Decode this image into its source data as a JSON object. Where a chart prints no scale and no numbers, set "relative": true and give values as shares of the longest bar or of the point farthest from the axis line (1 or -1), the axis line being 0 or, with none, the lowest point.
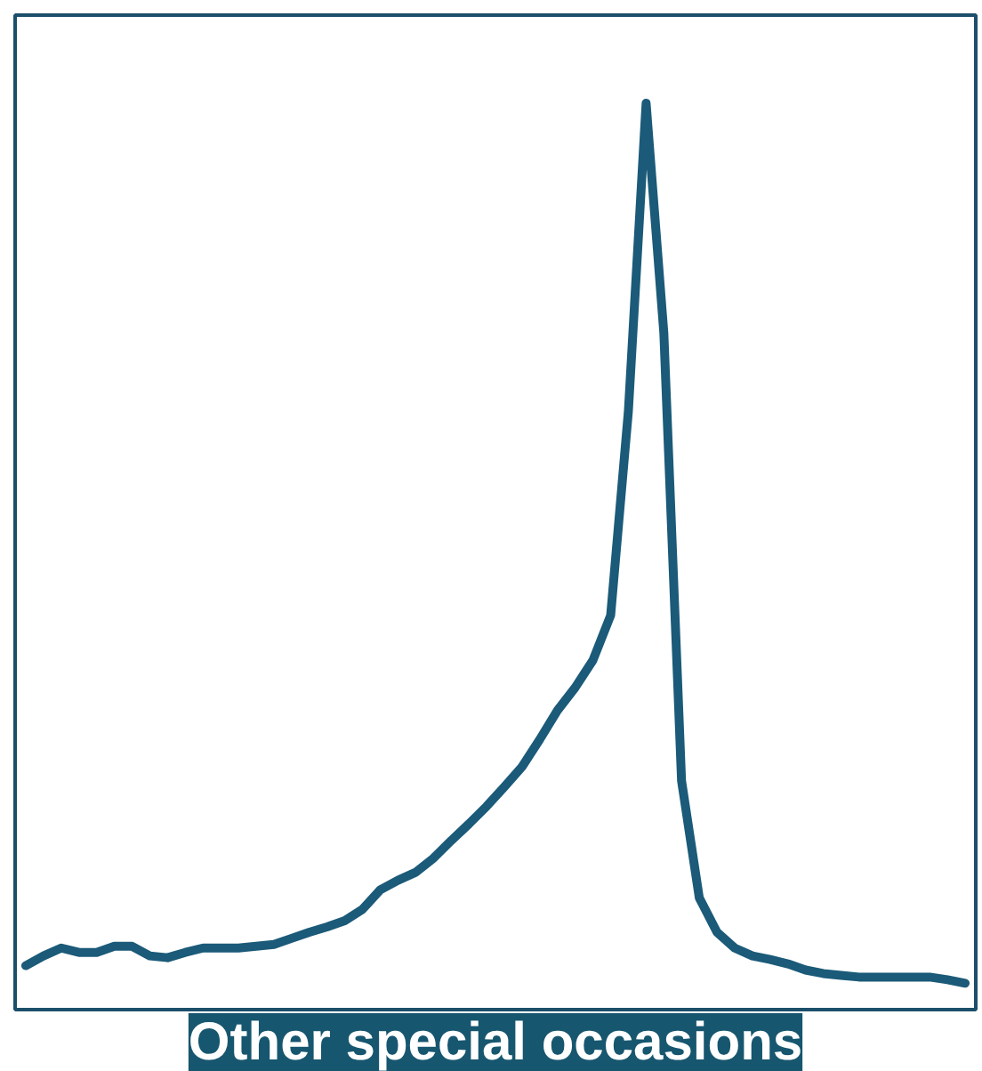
{
  "chart_data": {
    "type": "line",
    "title": "Other special occasions",
    "relative": true,
    "categories": [
      null,
      null,
      null,
      null,
      null,
      null,
      null,
      null,
      null,
      null,
      null,
      null,
      null,
      null,
      null,
      null,
      null,
      null,
      null,
      null,
      null,
      null,
      null,
      null,
      null,
      null,
      null,
      null,
      null,
      null,
      null,
      null,
      null,
      null,
      null,
      null,
      null,
      null,
      null,
      null,
      null,
      null,
      null,
      null,
      null,
      null,
      null,
      null,
      null,
      null,
      null,
      null,
      null,
      null
    ],
    "series": [
      {
        "color": "#1b5a78",
        "values": [
          0.02,
          0.031,
          0.04,
          0.035,
          0.035,
          0.042,
          0.042,
          0.031,
          0.029,
          0.035,
          0.04,
          0.04,
          0.04,
          0.042,
          0.044,
          0.051,
          0.058,
          0.064,
          0.071,
          0.084,
          0.106,
          0.117,
          0.126,
          0.142,
          0.162,
          0.181,
          0.201,
          0.223,
          0.246,
          0.277,
          0.31,
          0.336,
          0.367,
          0.418,
          0.65,
          1,
          0.739,
          0.23,
          0.097,
          0.058,
          0.04,
          0.031,
          0.027,
          0.022,
          0.015,
          0.011,
          0.009,
          0.007,
          0.007,
          0.007,
          0.007,
          0.007,
          0.004,
          0
        ]
      }
    ],
    "grid": false,
    "marker": "none",
    "line_style": "solid"
  }
}
